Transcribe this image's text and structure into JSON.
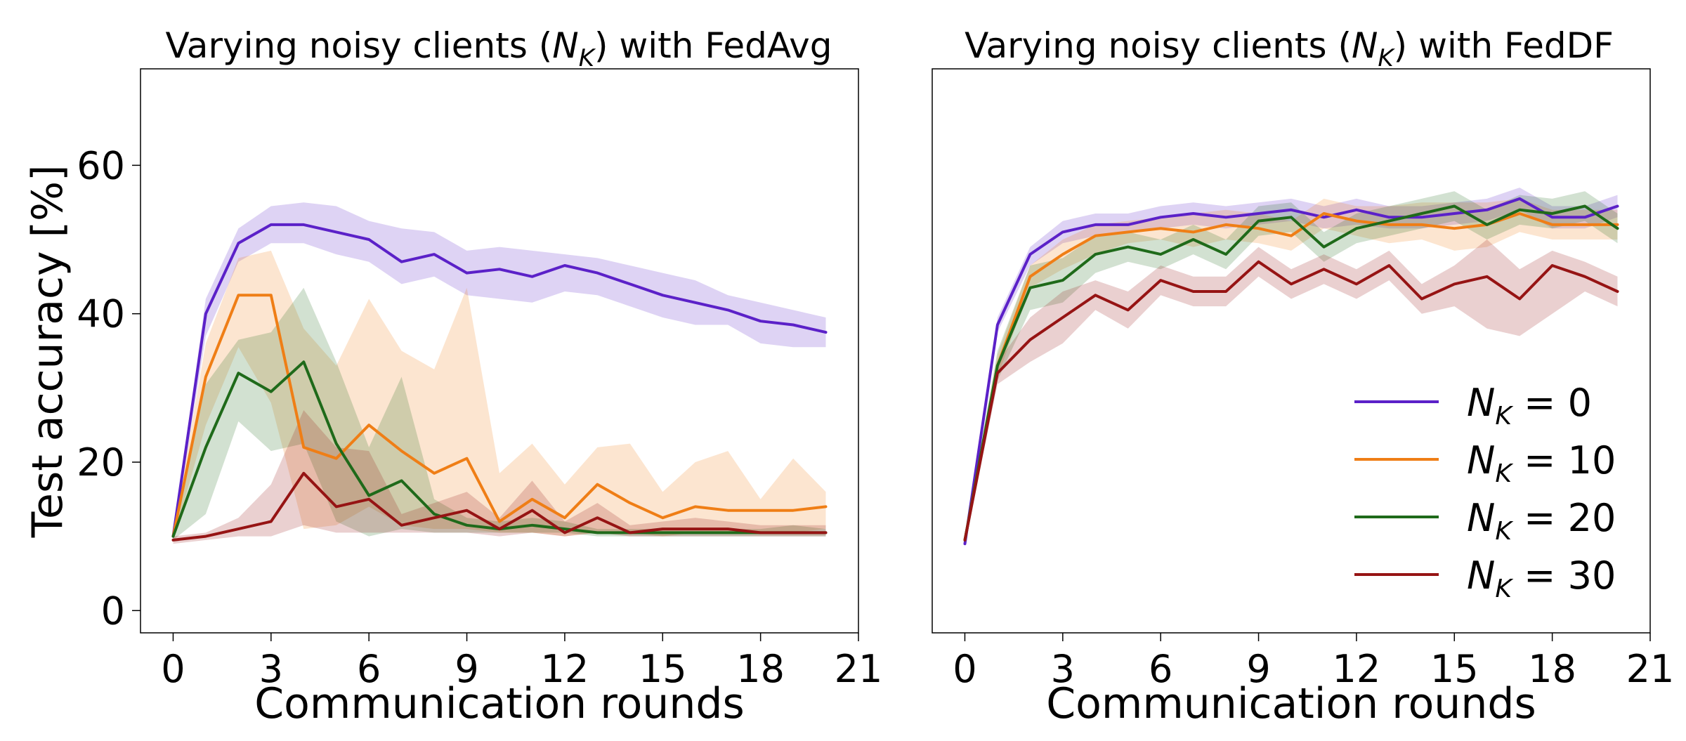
{
  "chart_data": [
    {
      "type": "line",
      "title": "Varying noisy clients (N_K) with FedAvg",
      "title_parts": {
        "before": "Varying noisy clients (",
        "N": "N",
        "sub": "K",
        "after": ") with FedAvg"
      },
      "xlabel": "Communication rounds",
      "ylabel": "Test accuracy [%]",
      "xlim": [
        -1,
        21
      ],
      "ylim": [
        -3,
        73
      ],
      "xticks": [
        "0",
        "3",
        "6",
        "9",
        "12",
        "15",
        "18",
        "21"
      ],
      "yticks": [
        "0",
        "20",
        "40",
        "60"
      ],
      "grid": false,
      "legend": null,
      "x": [
        0,
        1,
        2,
        3,
        4,
        5,
        6,
        7,
        8,
        9,
        10,
        11,
        12,
        13,
        14,
        15,
        16,
        17,
        18,
        19,
        20
      ],
      "series": [
        {
          "key": "nk0",
          "color": "#5b21c8",
          "values": [
            10,
            40,
            49.5,
            52,
            52,
            51,
            50,
            47,
            48,
            45.5,
            46,
            45,
            46.5,
            45.5,
            44,
            42.5,
            41.5,
            40.5,
            39,
            38.5,
            37.5
          ],
          "lower": [
            9.5,
            37,
            47,
            49.5,
            49.5,
            48,
            47,
            44,
            45,
            42.5,
            42,
            41.5,
            43,
            42.5,
            41,
            39.5,
            38.5,
            38.5,
            36,
            35.5,
            35.5
          ],
          "upper": [
            10.5,
            42,
            51.5,
            54.5,
            55,
            54.5,
            52.5,
            51.5,
            51,
            48.5,
            49,
            48.5,
            48,
            47.5,
            46.5,
            45.5,
            44.5,
            42.5,
            41.5,
            40.5,
            39.5
          ]
        },
        {
          "key": "nk10",
          "color": "#ef7e16",
          "values": [
            10,
            31.5,
            42.5,
            42.5,
            22,
            20.5,
            25,
            21.5,
            18.5,
            20.5,
            12,
            15,
            12.5,
            17,
            14.5,
            12.5,
            14,
            13.5,
            13.5,
            13.5,
            14
          ],
          "lower": [
            9.5,
            25,
            35.5,
            28,
            11,
            11.5,
            14,
            11.5,
            11,
            11,
            10.5,
            10.5,
            10,
            10.5,
            10.5,
            10,
            10.5,
            10.5,
            10.5,
            10.5,
            11
          ],
          "upper": [
            10.5,
            36,
            47.5,
            48.5,
            38,
            33,
            42,
            35,
            32.5,
            43.5,
            18.5,
            22.5,
            17,
            22,
            22.5,
            16,
            20,
            21.5,
            15,
            20.5,
            16
          ]
        },
        {
          "key": "nk20",
          "color": "#1f6a1a",
          "values": [
            10,
            22,
            32,
            29.5,
            33.5,
            22.5,
            15.5,
            17.5,
            13,
            11.5,
            11,
            11.5,
            11,
            10.5,
            10.5,
            10.5,
            10.5,
            10.5,
            10.5,
            10.5,
            10.5
          ],
          "lower": [
            9.5,
            13,
            25.5,
            21.5,
            22.5,
            12,
            10,
            11,
            10.5,
            10.5,
            10.5,
            10.5,
            10.5,
            10,
            10,
            10,
            10,
            10,
            10,
            10,
            10
          ],
          "upper": [
            10.5,
            30.5,
            36.5,
            37.5,
            43.5,
            33.5,
            22,
            31.5,
            15,
            12.5,
            12,
            12.5,
            12,
            11,
            11,
            11,
            11,
            11,
            11,
            11.5,
            11
          ]
        },
        {
          "key": "nk30",
          "color": "#961414",
          "values": [
            9.5,
            10,
            11,
            12,
            18.5,
            14,
            15,
            11.5,
            12.5,
            13.5,
            11,
            13.5,
            10.5,
            12.5,
            10.5,
            11,
            11,
            11,
            10.5,
            10.5,
            10.5
          ],
          "lower": [
            9,
            9.5,
            10,
            10,
            11.5,
            10.5,
            10.5,
            10.5,
            10.5,
            10.5,
            10,
            10.5,
            10,
            10.5,
            10,
            10,
            10,
            10,
            10,
            10,
            10
          ],
          "upper": [
            10,
            10.5,
            12.5,
            17,
            27,
            22,
            21.5,
            13,
            14.5,
            16,
            12.5,
            17.5,
            12,
            14.5,
            11.5,
            12,
            12.5,
            12,
            11.5,
            11.5,
            11.5
          ]
        }
      ]
    },
    {
      "type": "line",
      "title": "Varying noisy clients (N_K) with FedDF",
      "title_parts": {
        "before": "Varying noisy clients (",
        "N": "N",
        "sub": "K",
        "after": ") with FedDF"
      },
      "xlabel": "Communication rounds",
      "ylabel": "",
      "xlim": [
        -1,
        21
      ],
      "ylim": [
        -3,
        73
      ],
      "xticks": [
        "0",
        "3",
        "6",
        "9",
        "12",
        "15",
        "18",
        "21"
      ],
      "yticks": [],
      "grid": false,
      "legend": "lower-right",
      "x": [
        0,
        1,
        2,
        3,
        4,
        5,
        6,
        7,
        8,
        9,
        10,
        11,
        12,
        13,
        14,
        15,
        16,
        17,
        18,
        19,
        20
      ],
      "series": [
        {
          "key": "nk0",
          "color": "#5b21c8",
          "values": [
            9,
            38.5,
            48,
            51,
            52,
            52,
            53,
            53.5,
            53,
            53.5,
            54,
            53,
            54,
            53,
            53,
            53.5,
            54,
            55.5,
            53,
            53,
            54.5
          ],
          "lower": [
            8.5,
            37.5,
            46.5,
            49.5,
            50.5,
            51,
            51.5,
            52,
            51.5,
            52,
            52.5,
            51.5,
            52,
            51.5,
            51.5,
            52,
            52.5,
            54,
            51.5,
            51.5,
            53
          ],
          "upper": [
            9.5,
            39.5,
            49,
            52.5,
            53.5,
            53.5,
            54.5,
            55,
            54.5,
            55,
            55.5,
            54.5,
            55.5,
            54.5,
            54.5,
            55,
            55.5,
            57,
            54.5,
            54.5,
            56
          ]
        },
        {
          "key": "nk10",
          "color": "#ef7e16",
          "values": [
            9.5,
            33,
            45,
            48,
            50.5,
            51,
            51.5,
            51,
            52,
            51.5,
            50.5,
            53.5,
            52.5,
            52,
            52,
            51.5,
            52,
            53.5,
            52,
            52,
            52
          ],
          "lower": [
            9,
            31.5,
            43.5,
            46,
            48,
            49.5,
            50,
            49,
            50,
            49.5,
            48.5,
            51.5,
            50.5,
            49.5,
            50,
            48.5,
            49,
            51,
            50,
            50,
            50
          ],
          "upper": [
            10,
            34.5,
            46.5,
            50,
            52,
            52.5,
            53,
            53.5,
            54,
            53.5,
            52.5,
            55.5,
            54.5,
            54.5,
            55,
            55,
            55,
            55.5,
            54,
            54,
            54
          ]
        },
        {
          "key": "nk20",
          "color": "#1f6a1a",
          "values": [
            9.5,
            33,
            43.5,
            44.5,
            48,
            49,
            48,
            50,
            48,
            52.5,
            53,
            49,
            51.5,
            52.5,
            53.5,
            54.5,
            52,
            54,
            53.5,
            54.5,
            51.5
          ],
          "lower": [
            9,
            31,
            40.5,
            41.5,
            45.5,
            47,
            46,
            48,
            46,
            50.5,
            51,
            47,
            49.5,
            50.5,
            51.5,
            52.5,
            50,
            52,
            51.5,
            52.5,
            49.5
          ],
          "upper": [
            10,
            35,
            46.5,
            47.5,
            50.5,
            51,
            50,
            52,
            50,
            54.5,
            55,
            51,
            53.5,
            54.5,
            55.5,
            56.5,
            54,
            56,
            55.5,
            56.5,
            53.5
          ]
        },
        {
          "key": "nk30",
          "color": "#961414",
          "values": [
            9.5,
            32,
            36.5,
            39.5,
            42.5,
            40.5,
            44.5,
            43,
            43,
            47,
            44,
            46,
            44,
            46.5,
            42,
            44,
            45,
            42,
            46.5,
            45,
            43
          ],
          "lower": [
            9,
            30.5,
            33.5,
            36,
            40.5,
            38,
            42.5,
            41,
            41,
            45,
            42,
            44,
            42,
            44.5,
            40,
            41,
            38,
            37,
            40,
            43,
            41
          ],
          "upper": [
            10,
            33.5,
            39.5,
            43,
            44.5,
            43,
            46.5,
            45,
            45,
            49,
            46,
            48,
            46,
            48.5,
            44,
            46.5,
            50,
            46,
            48.5,
            47,
            45
          ]
        }
      ]
    }
  ],
  "legend_items": [
    {
      "key": "nk0",
      "label_prefix": "N",
      "label_sub": "K",
      "label_eq": " = 0",
      "color": "#5b21c8"
    },
    {
      "key": "nk10",
      "label_prefix": "N",
      "label_sub": "K",
      "label_eq": " = 10",
      "color": "#ef7e16"
    },
    {
      "key": "nk20",
      "label_prefix": "N",
      "label_sub": "K",
      "label_eq": " = 20",
      "color": "#1f6a1a"
    },
    {
      "key": "nk30",
      "label_prefix": "N",
      "label_sub": "K",
      "label_eq": " = 30",
      "color": "#961414"
    }
  ]
}
